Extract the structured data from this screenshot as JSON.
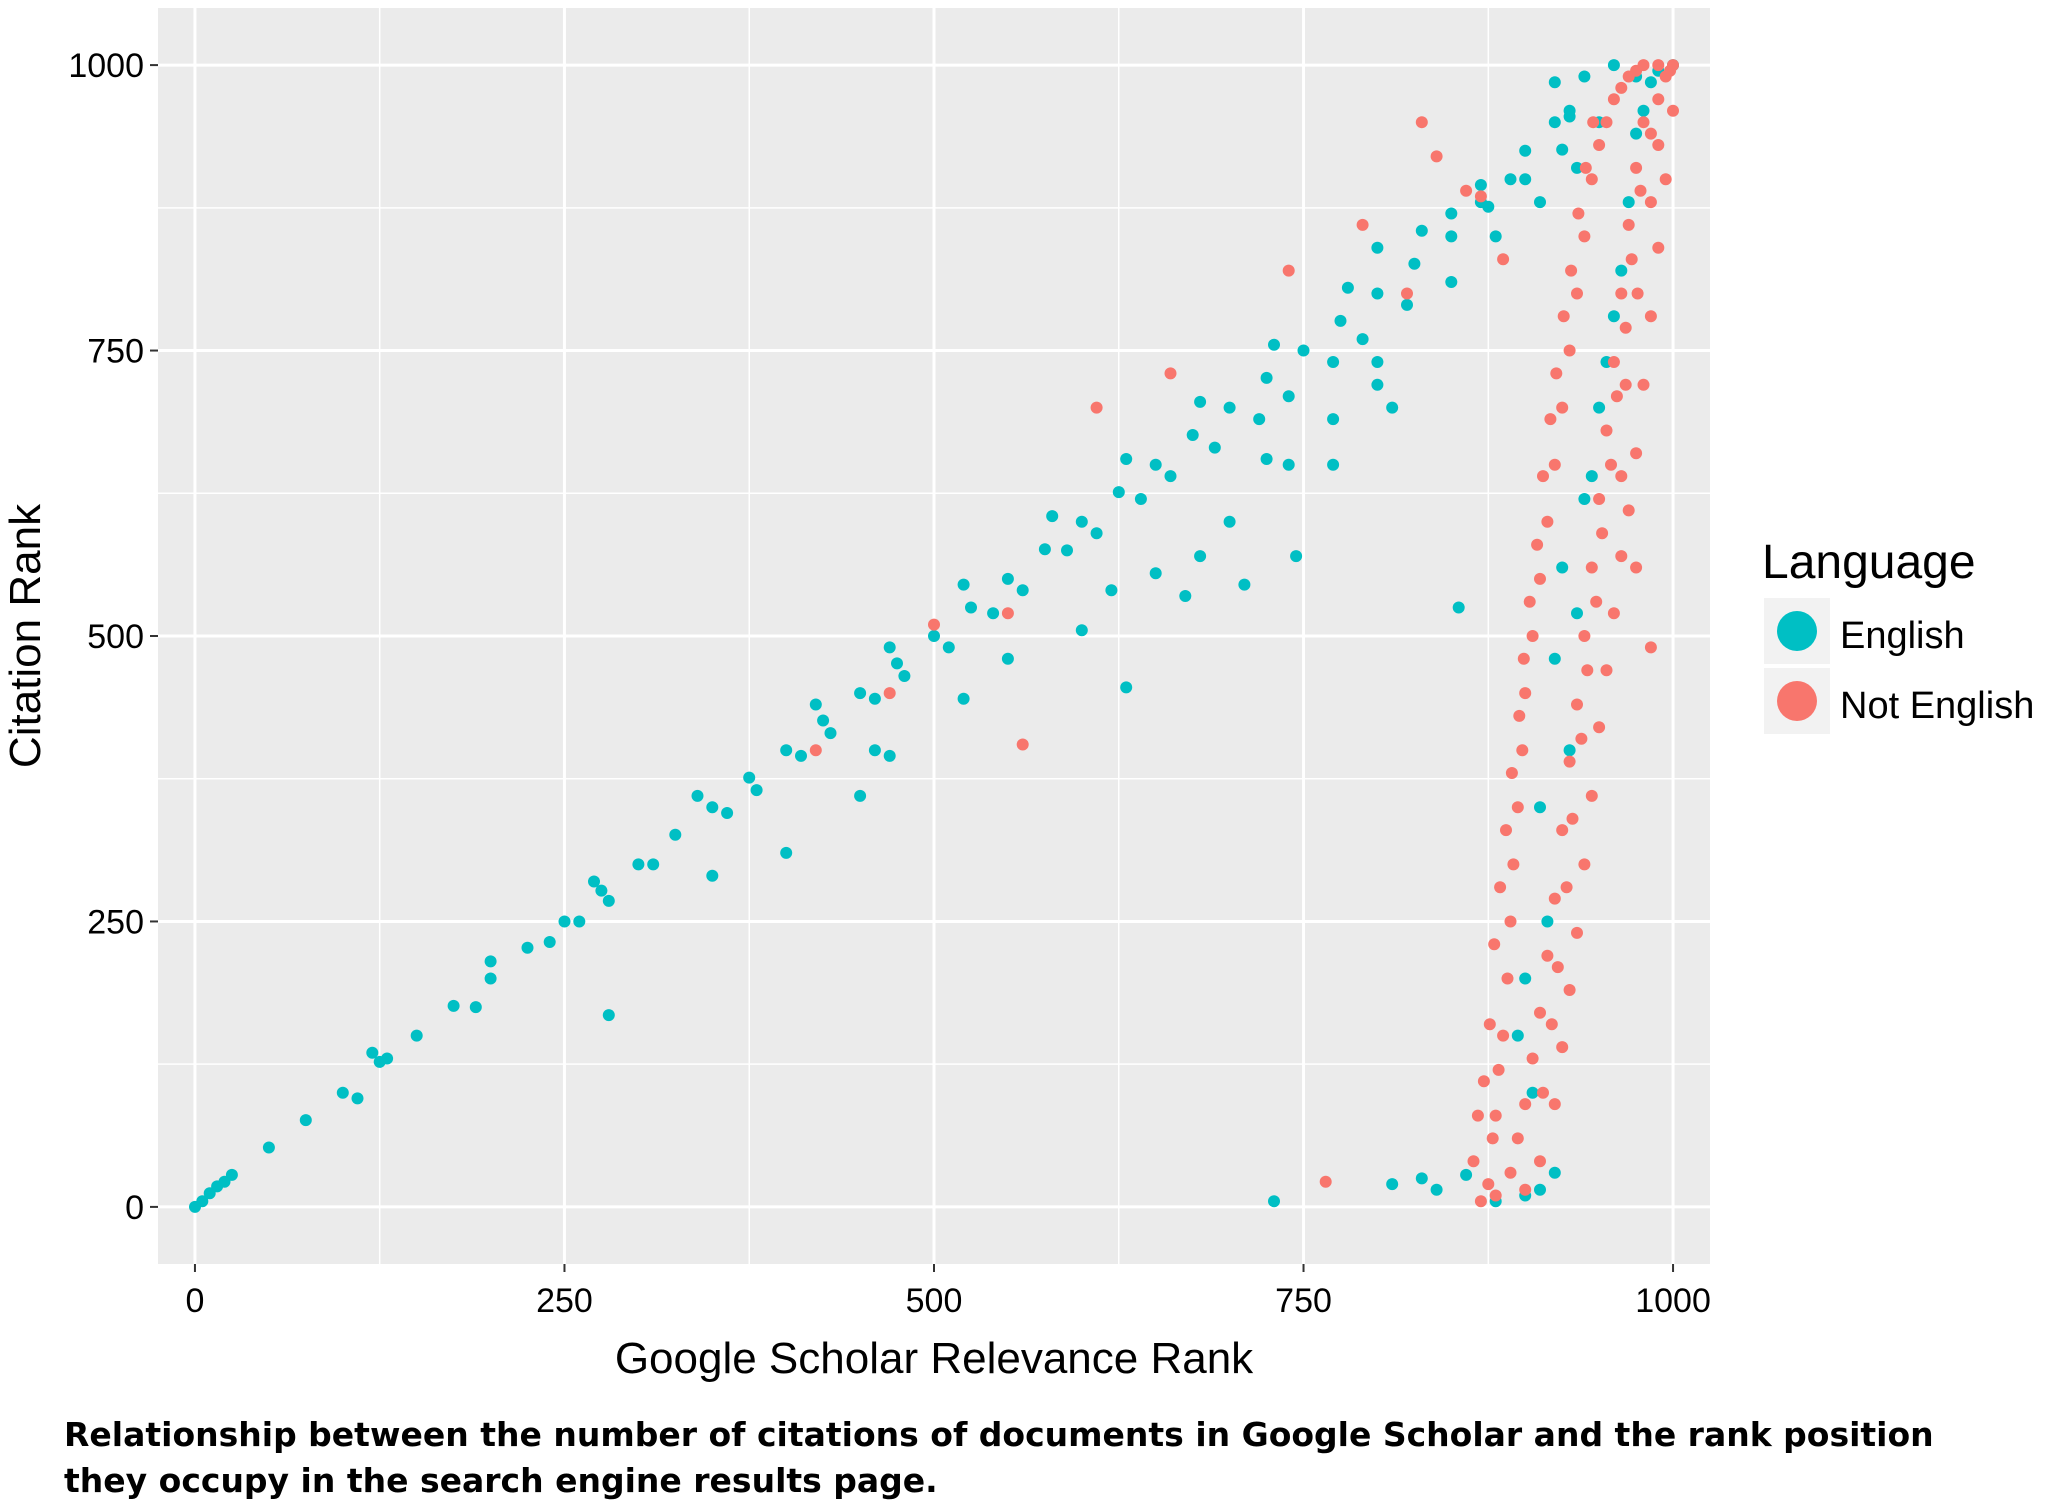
{
  "caption": "Relationship between the number of citations of documents in Google Scholar and the rank position they occupy in the search engine results page.",
  "chart_data": {
    "type": "scatter",
    "title": "",
    "xlabel": "Google Scholar Relevance Rank",
    "ylabel": "Citation Rank",
    "xlim": [
      -25,
      1025
    ],
    "ylim": [
      -50,
      1050
    ],
    "xticks": [
      0,
      250,
      500,
      750,
      1000
    ],
    "yticks": [
      0,
      250,
      500,
      750,
      1000
    ],
    "xtick_labels": [
      "0",
      "250",
      "500",
      "750",
      "1000"
    ],
    "ytick_labels": [
      "0",
      "250",
      "500",
      "750",
      "1000"
    ],
    "grid": true,
    "legend": {
      "title": "Language",
      "position": "right",
      "entries": [
        {
          "name": "English",
          "color": "#00BFC4"
        },
        {
          "name": "Not English",
          "color": "#F8766D"
        }
      ]
    },
    "colors": {
      "panel": "#EBEBEB",
      "grid": "#FFFFFF"
    },
    "series": [
      {
        "name": "English",
        "color": "#00BFC4",
        "points": [
          [
            0,
            0
          ],
          [
            5,
            5
          ],
          [
            10,
            12
          ],
          [
            15,
            18
          ],
          [
            20,
            22
          ],
          [
            25,
            28
          ],
          [
            50,
            52
          ],
          [
            75,
            76
          ],
          [
            100,
            100
          ],
          [
            125,
            127
          ],
          [
            150,
            150
          ],
          [
            175,
            176
          ],
          [
            200,
            200
          ],
          [
            225,
            227
          ],
          [
            250,
            250
          ],
          [
            275,
            277
          ],
          [
            300,
            300
          ],
          [
            325,
            326
          ],
          [
            350,
            350
          ],
          [
            375,
            376
          ],
          [
            400,
            400
          ],
          [
            425,
            426
          ],
          [
            450,
            450
          ],
          [
            475,
            476
          ],
          [
            500,
            500
          ],
          [
            525,
            525
          ],
          [
            550,
            550
          ],
          [
            575,
            576
          ],
          [
            600,
            600
          ],
          [
            625,
            626
          ],
          [
            650,
            650
          ],
          [
            675,
            676
          ],
          [
            700,
            700
          ],
          [
            725,
            726
          ],
          [
            750,
            750
          ],
          [
            775,
            776
          ],
          [
            800,
            800
          ],
          [
            825,
            826
          ],
          [
            850,
            850
          ],
          [
            875,
            876
          ],
          [
            900,
            900
          ],
          [
            925,
            926
          ],
          [
            950,
            950
          ],
          [
            975,
            990
          ],
          [
            1000,
            1000
          ],
          [
            960,
            1000
          ],
          [
            940,
            990
          ],
          [
            920,
            985
          ],
          [
            110,
            95
          ],
          [
            130,
            130
          ],
          [
            190,
            175
          ],
          [
            240,
            232
          ],
          [
            260,
            250
          ],
          [
            280,
            268
          ],
          [
            310,
            300
          ],
          [
            360,
            345
          ],
          [
            380,
            365
          ],
          [
            410,
            395
          ],
          [
            430,
            415
          ],
          [
            460,
            445
          ],
          [
            480,
            465
          ],
          [
            510,
            490
          ],
          [
            540,
            520
          ],
          [
            560,
            540
          ],
          [
            590,
            575
          ],
          [
            610,
            590
          ],
          [
            640,
            620
          ],
          [
            660,
            640
          ],
          [
            690,
            665
          ],
          [
            720,
            690
          ],
          [
            740,
            710
          ],
          [
            770,
            740
          ],
          [
            790,
            760
          ],
          [
            820,
            790
          ],
          [
            850,
            810
          ],
          [
            880,
            850
          ],
          [
            910,
            880
          ],
          [
            935,
            910
          ],
          [
            120,
            135
          ],
          [
            200,
            215
          ],
          [
            270,
            285
          ],
          [
            340,
            360
          ],
          [
            420,
            440
          ],
          [
            470,
            490
          ],
          [
            520,
            545
          ],
          [
            580,
            605
          ],
          [
            630,
            655
          ],
          [
            680,
            705
          ],
          [
            730,
            755
          ],
          [
            780,
            805
          ],
          [
            830,
            855
          ],
          [
            870,
            895
          ],
          [
            900,
            925
          ],
          [
            930,
            955
          ],
          [
            280,
            168
          ],
          [
            350,
            290
          ],
          [
            400,
            310
          ],
          [
            450,
            360
          ],
          [
            460,
            400
          ],
          [
            470,
            395
          ],
          [
            520,
            445
          ],
          [
            550,
            480
          ],
          [
            600,
            505
          ],
          [
            620,
            540
          ],
          [
            650,
            555
          ],
          [
            680,
            570
          ],
          [
            700,
            600
          ],
          [
            725,
            655
          ],
          [
            740,
            650
          ],
          [
            770,
            650
          ],
          [
            770,
            690
          ],
          [
            800,
            720
          ],
          [
            800,
            740
          ],
          [
            810,
            700
          ],
          [
            630,
            455
          ],
          [
            670,
            535
          ],
          [
            710,
            545
          ],
          [
            745,
            570
          ],
          [
            855,
            525
          ],
          [
            730,
            5
          ],
          [
            810,
            20
          ],
          [
            830,
            25
          ],
          [
            840,
            15
          ],
          [
            860,
            28
          ],
          [
            880,
            5
          ],
          [
            900,
            10
          ],
          [
            910,
            15
          ],
          [
            920,
            30
          ],
          [
            900,
            200
          ],
          [
            910,
            350
          ],
          [
            920,
            480
          ],
          [
            925,
            560
          ],
          [
            940,
            620
          ],
          [
            950,
            700
          ],
          [
            960,
            780
          ],
          [
            930,
            400
          ],
          [
            915,
            250
          ],
          [
            895,
            150
          ],
          [
            905,
            100
          ],
          [
            935,
            520
          ],
          [
            945,
            640
          ],
          [
            955,
            740
          ],
          [
            965,
            820
          ],
          [
            970,
            880
          ],
          [
            975,
            940
          ],
          [
            980,
            960
          ],
          [
            985,
            985
          ],
          [
            990,
            995
          ],
          [
            920,
            950
          ],
          [
            930,
            960
          ],
          [
            890,
            900
          ],
          [
            870,
            880
          ],
          [
            850,
            870
          ],
          [
            800,
            840
          ]
        ]
      },
      {
        "name": "Not English",
        "color": "#F8766D",
        "points": [
          [
            870,
            5
          ],
          [
            875,
            20
          ],
          [
            878,
            60
          ],
          [
            880,
            80
          ],
          [
            882,
            120
          ],
          [
            885,
            150
          ],
          [
            888,
            200
          ],
          [
            890,
            250
          ],
          [
            892,
            300
          ],
          [
            895,
            350
          ],
          [
            898,
            400
          ],
          [
            900,
            450
          ],
          [
            905,
            500
          ],
          [
            910,
            550
          ],
          [
            915,
            600
          ],
          [
            920,
            650
          ],
          [
            925,
            700
          ],
          [
            930,
            750
          ],
          [
            935,
            800
          ],
          [
            940,
            850
          ],
          [
            945,
            900
          ],
          [
            950,
            930
          ],
          [
            955,
            950
          ],
          [
            960,
            970
          ],
          [
            965,
            980
          ],
          [
            970,
            990
          ],
          [
            975,
            995
          ],
          [
            980,
            1000
          ],
          [
            990,
            1000
          ],
          [
            1000,
            1000
          ],
          [
            880,
            10
          ],
          [
            890,
            30
          ],
          [
            895,
            60
          ],
          [
            900,
            90
          ],
          [
            905,
            130
          ],
          [
            910,
            170
          ],
          [
            915,
            220
          ],
          [
            920,
            270
          ],
          [
            925,
            330
          ],
          [
            930,
            390
          ],
          [
            935,
            440
          ],
          [
            940,
            500
          ],
          [
            945,
            560
          ],
          [
            950,
            620
          ],
          [
            955,
            680
          ],
          [
            960,
            740
          ],
          [
            965,
            800
          ],
          [
            970,
            860
          ],
          [
            975,
            910
          ],
          [
            980,
            950
          ],
          [
            900,
            15
          ],
          [
            910,
            40
          ],
          [
            912,
            100
          ],
          [
            918,
            160
          ],
          [
            922,
            210
          ],
          [
            928,
            280
          ],
          [
            932,
            340
          ],
          [
            938,
            410
          ],
          [
            942,
            470
          ],
          [
            948,
            530
          ],
          [
            952,
            590
          ],
          [
            958,
            650
          ],
          [
            962,
            710
          ],
          [
            968,
            770
          ],
          [
            972,
            830
          ],
          [
            978,
            890
          ],
          [
            985,
            940
          ],
          [
            990,
            970
          ],
          [
            995,
            990
          ],
          [
            998,
            995
          ],
          [
            865,
            40
          ],
          [
            868,
            80
          ],
          [
            872,
            110
          ],
          [
            876,
            160
          ],
          [
            879,
            230
          ],
          [
            883,
            280
          ],
          [
            887,
            330
          ],
          [
            891,
            380
          ],
          [
            896,
            430
          ],
          [
            899,
            480
          ],
          [
            903,
            530
          ],
          [
            908,
            580
          ],
          [
            912,
            640
          ],
          [
            917,
            690
          ],
          [
            921,
            730
          ],
          [
            926,
            780
          ],
          [
            931,
            820
          ],
          [
            936,
            870
          ],
          [
            941,
            910
          ],
          [
            946,
            950
          ],
          [
            920,
            90
          ],
          [
            925,
            140
          ],
          [
            930,
            190
          ],
          [
            935,
            240
          ],
          [
            940,
            300
          ],
          [
            945,
            360
          ],
          [
            950,
            420
          ],
          [
            955,
            470
          ],
          [
            960,
            520
          ],
          [
            965,
            570
          ],
          [
            970,
            610
          ],
          [
            975,
            660
          ],
          [
            980,
            720
          ],
          [
            985,
            780
          ],
          [
            990,
            840
          ],
          [
            995,
            900
          ],
          [
            1000,
            960
          ],
          [
            985,
            490
          ],
          [
            975,
            560
          ],
          [
            965,
            640
          ],
          [
            765,
            22
          ],
          [
            885,
            830
          ],
          [
            820,
            800
          ],
          [
            840,
            920
          ],
          [
            870,
            885
          ],
          [
            860,
            890
          ],
          [
            990,
            930
          ],
          [
            985,
            880
          ],
          [
            976,
            800
          ],
          [
            968,
            720
          ],
          [
            560,
            405
          ],
          [
            470,
            450
          ],
          [
            420,
            400
          ],
          [
            500,
            510
          ],
          [
            550,
            520
          ],
          [
            610,
            700
          ],
          [
            660,
            730
          ],
          [
            740,
            820
          ],
          [
            790,
            860
          ],
          [
            830,
            950
          ]
        ]
      }
    ]
  }
}
